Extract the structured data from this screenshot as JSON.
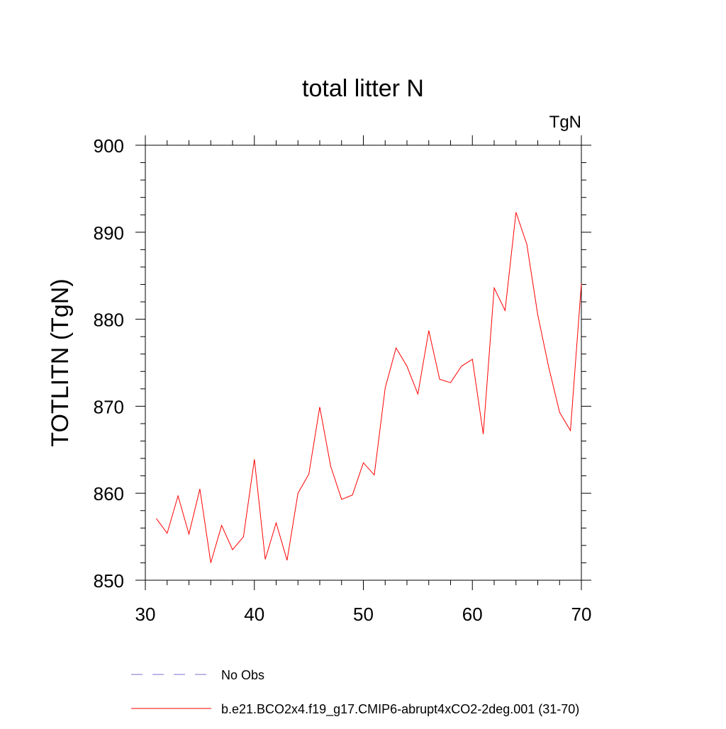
{
  "chart_data": {
    "type": "line",
    "title": "total litter N",
    "units_label": "TgN",
    "xlabel": "",
    "ylabel": "TOTLITN  (TgN)",
    "xlim": [
      30,
      70
    ],
    "ylim": [
      850,
      900
    ],
    "x_ticks": [
      30,
      40,
      50,
      60,
      70
    ],
    "y_ticks": [
      850,
      860,
      870,
      880,
      890,
      900
    ],
    "grid": false,
    "legend_position": "bottom",
    "series": [
      {
        "name": "b.e21.BCO2x4.f19_g17.CMIP6-abrupt4xCO2-2deg.001 (31-70)",
        "color": "#ff0000",
        "dash": "solid",
        "x": [
          31,
          32,
          33,
          34,
          35,
          36,
          37,
          38,
          39,
          40,
          41,
          42,
          43,
          44,
          45,
          46,
          47,
          48,
          49,
          50,
          51,
          52,
          53,
          54,
          55,
          56,
          57,
          58,
          59,
          60,
          61,
          62,
          63,
          64,
          65,
          66,
          67,
          68,
          69,
          70
        ],
        "values": [
          857.1,
          855.4,
          859.7,
          855.3,
          860.5,
          852.0,
          856.3,
          853.5,
          855.0,
          863.9,
          852.4,
          856.6,
          852.3,
          860.0,
          862.2,
          869.9,
          863.1,
          859.3,
          859.8,
          863.5,
          862.1,
          872.1,
          876.7,
          874.6,
          871.4,
          878.7,
          873.1,
          872.7,
          874.6,
          875.4,
          866.8,
          883.6,
          881.0,
          892.3,
          888.6,
          880.5,
          874.5,
          869.3,
          867.2,
          884.1
        ]
      }
    ],
    "legend_entries": [
      {
        "label": "No Obs",
        "color": "#7b6fd0",
        "dash": "dashed"
      },
      {
        "label": "b.e21.BCO2x4.f19_g17.CMIP6-abrupt4xCO2-2deg.001 (31-70)",
        "color": "#ff0000",
        "dash": "solid"
      }
    ]
  }
}
